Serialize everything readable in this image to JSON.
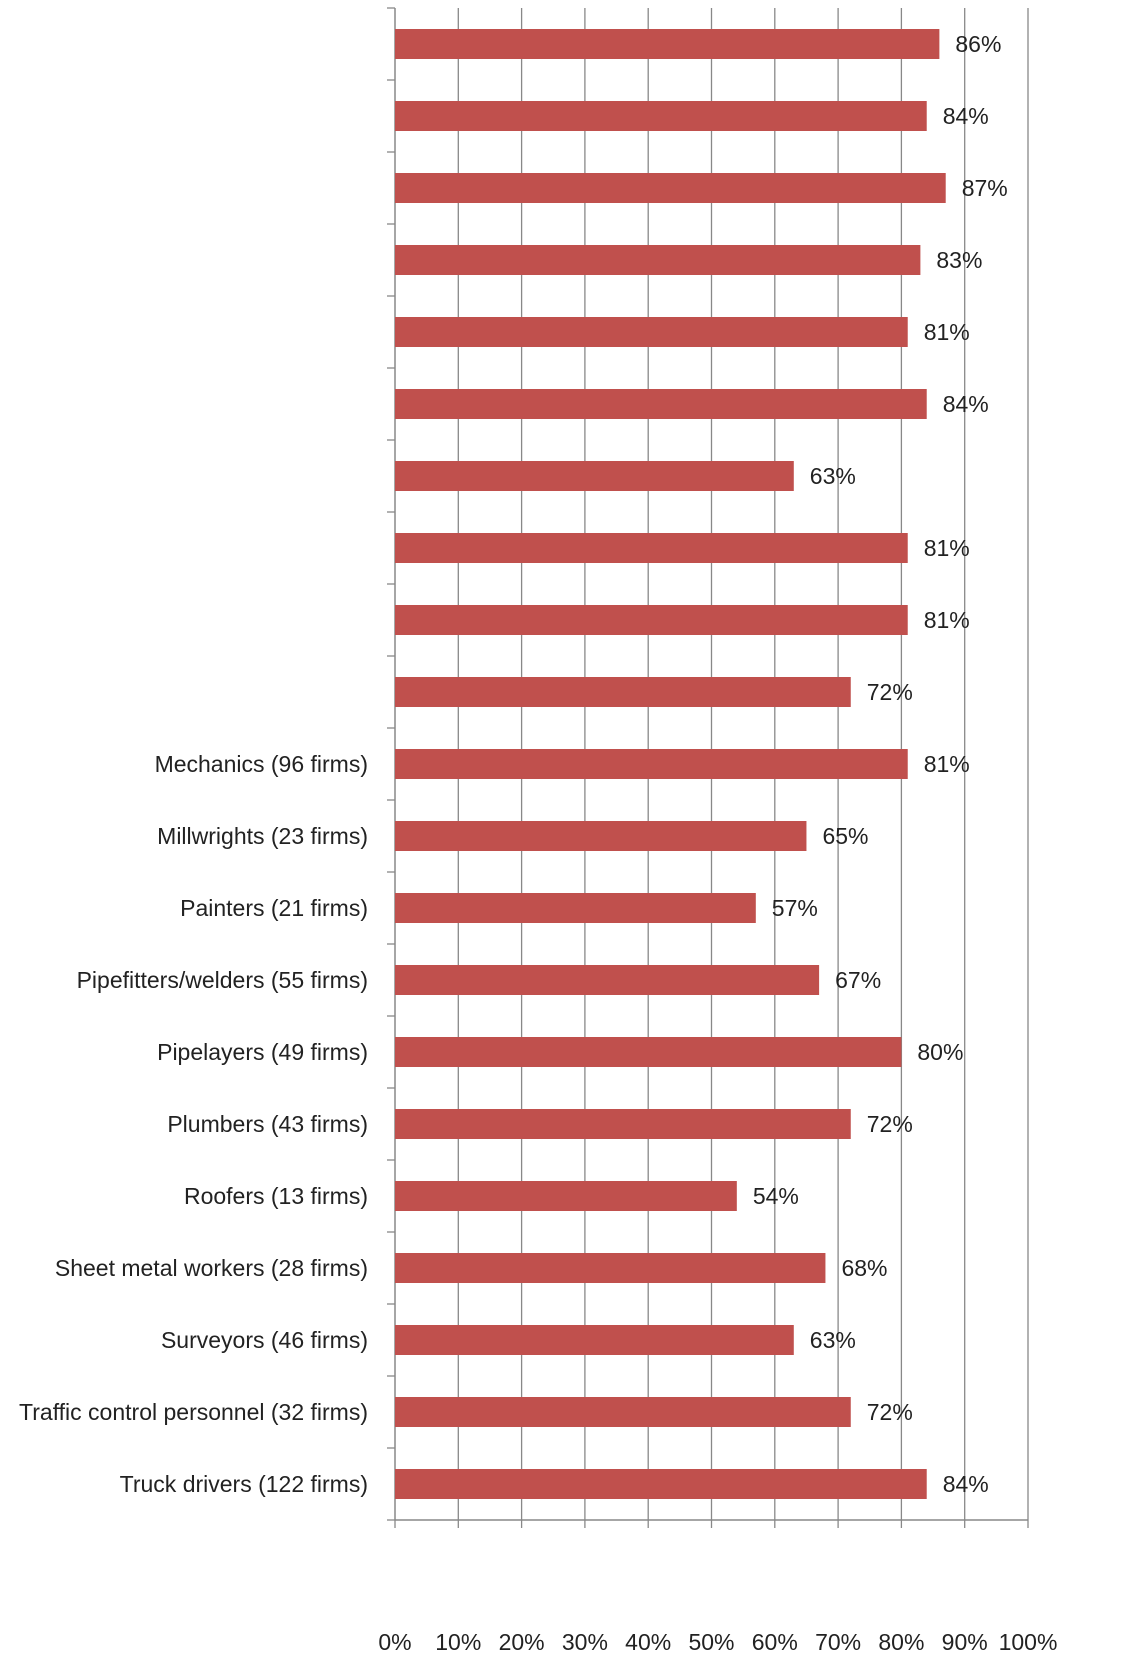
{
  "chart_data": {
    "type": "bar",
    "orientation": "horizontal",
    "categories": [
      "",
      "",
      "",
      "",
      "",
      "",
      "",
      "",
      "",
      "",
      "Mechanics (96 firms)",
      "Millwrights (23 firms)",
      "Painters (21 firms)",
      "Pipefitters/welders (55 firms)",
      "Pipelayers (49 firms)",
      "Plumbers (43 firms)",
      "Roofers (13 firms)",
      "Sheet metal workers (28 firms)",
      "Surveyors (46 firms)",
      "Traffic control personnel (32 firms)",
      "Truck drivers (122 firms)"
    ],
    "values": [
      86,
      84,
      87,
      83,
      81,
      84,
      63,
      81,
      81,
      72,
      81,
      65,
      57,
      67,
      80,
      72,
      54,
      68,
      63,
      72,
      84
    ],
    "data_labels": [
      "86%",
      "84%",
      "87%",
      "83%",
      "81%",
      "84%",
      "63%",
      "81%",
      "81%",
      "72%",
      "81%",
      "65%",
      "57%",
      "67%",
      "80%",
      "72%",
      "54%",
      "68%",
      "63%",
      "72%",
      "84%"
    ],
    "x_ticks": [
      "0%",
      "10%",
      "20%",
      "30%",
      "40%",
      "50%",
      "60%",
      "70%",
      "80%",
      "90%",
      "100%"
    ],
    "xlim": [
      0,
      100
    ],
    "grid": true,
    "legend": "none",
    "bar_color": "#c0504d",
    "grid_color": "#888888",
    "title": "",
    "xlabel": "",
    "ylabel": ""
  }
}
